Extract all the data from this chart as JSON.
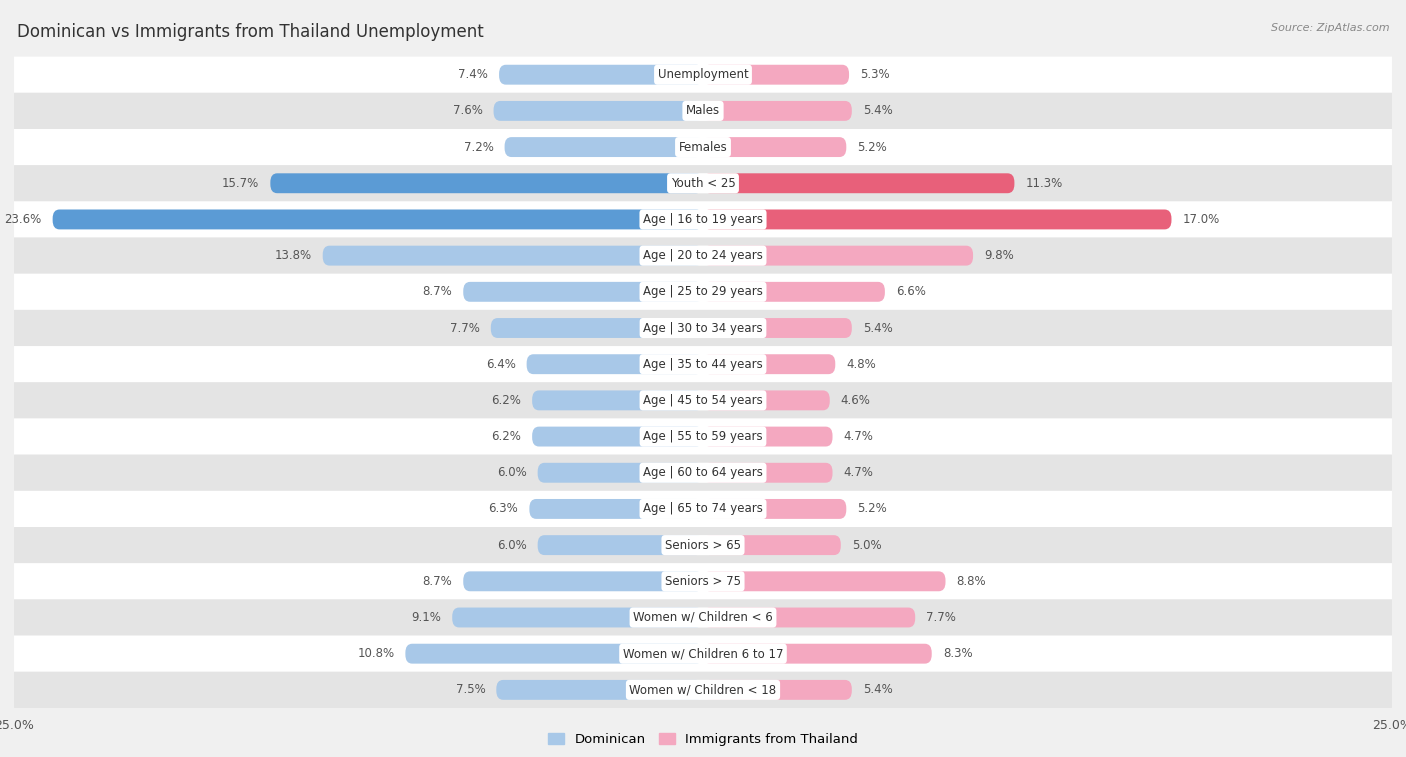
{
  "title": "Dominican vs Immigrants from Thailand Unemployment",
  "source": "Source: ZipAtlas.com",
  "categories": [
    "Unemployment",
    "Males",
    "Females",
    "Youth < 25",
    "Age | 16 to 19 years",
    "Age | 20 to 24 years",
    "Age | 25 to 29 years",
    "Age | 30 to 34 years",
    "Age | 35 to 44 years",
    "Age | 45 to 54 years",
    "Age | 55 to 59 years",
    "Age | 60 to 64 years",
    "Age | 65 to 74 years",
    "Seniors > 65",
    "Seniors > 75",
    "Women w/ Children < 6",
    "Women w/ Children 6 to 17",
    "Women w/ Children < 18"
  ],
  "dominican": [
    7.4,
    7.6,
    7.2,
    15.7,
    23.6,
    13.8,
    8.7,
    7.7,
    6.4,
    6.2,
    6.2,
    6.0,
    6.3,
    6.0,
    8.7,
    9.1,
    10.8,
    7.5
  ],
  "thailand": [
    5.3,
    5.4,
    5.2,
    11.3,
    17.0,
    9.8,
    6.6,
    5.4,
    4.8,
    4.6,
    4.7,
    4.7,
    5.2,
    5.0,
    8.8,
    7.7,
    8.3,
    5.4
  ],
  "dominican_color": "#a8c8e8",
  "thailand_color": "#f4a8c0",
  "dominican_color_highlight": "#5b9bd5",
  "thailand_color_highlight": "#e8607a",
  "background_color": "#f0f0f0",
  "row_light": "#ffffff",
  "row_dark": "#e4e4e4",
  "axis_limit": 25.0,
  "legend_dominican": "Dominican",
  "legend_thailand": "Immigrants from Thailand",
  "highlight_indices": [
    3,
    4
  ]
}
